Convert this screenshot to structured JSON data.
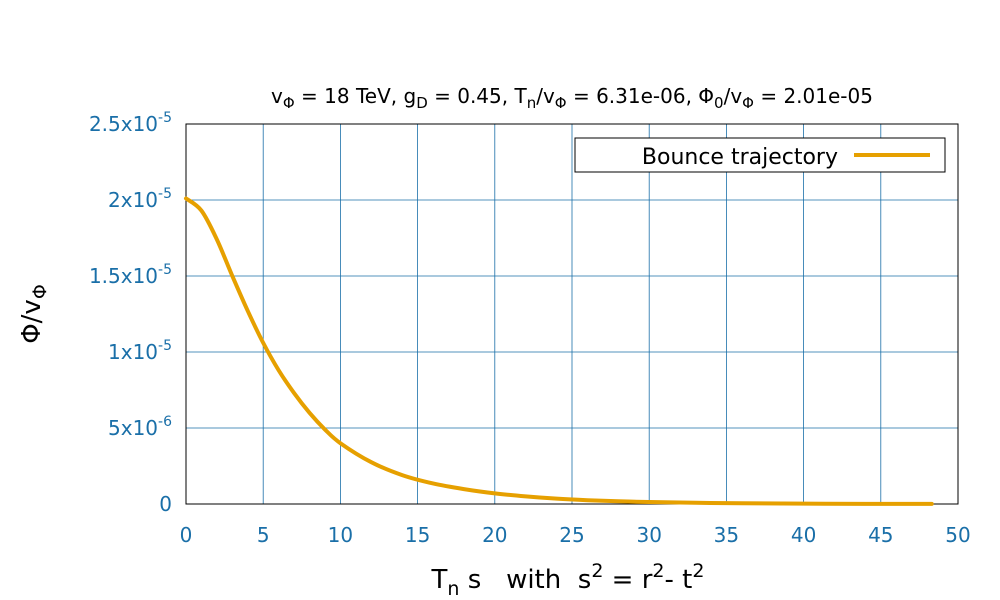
{
  "chart_data": {
    "type": "line",
    "title": "vΦ = 18 TeV, gD = 0.45, Tn/vΦ = 6.31e-06, Φ0/vΦ = 2.01e-05",
    "title_parts": {
      "part1_main": "v",
      "part1_sub": "Φ",
      "part1_rest": " = 18 TeV,  g",
      "part2_sub": "D",
      "part2_rest": " = 0.45,  T",
      "part3_sub": "n",
      "part3_rest": "/v",
      "part4_sub": "Φ",
      "part4_rest": " = 6.31e-06,  Φ",
      "part5_sub": "0",
      "part5_rest": "/v",
      "part6_sub": "Φ",
      "part6_rest": " = 2.01e-05"
    },
    "xlabel": "T_n s   with  s^2 = r^2- t^2",
    "xlabel_parts": {
      "a": "T",
      "a_sub": "n",
      "b": " s   with  s",
      "b_sup": "2",
      "c": " = r",
      "c_sup": "2",
      "d": "- t",
      "d_sup": "2"
    },
    "ylabel": "Φ/vΦ",
    "ylabel_parts": {
      "main": "Φ/v",
      "sub": "Φ"
    },
    "xlim": [
      0,
      50
    ],
    "ylim": [
      0,
      2.5e-05
    ],
    "x_ticks": [
      "0",
      "5",
      "10",
      "15",
      "20",
      "25",
      "30",
      "35",
      "40",
      "45",
      "50"
    ],
    "x_tick_values": [
      0,
      5,
      10,
      15,
      20,
      25,
      30,
      35,
      40,
      45,
      50
    ],
    "y_ticks": [
      {
        "value": 0,
        "base": "0",
        "exp": ""
      },
      {
        "value": 5e-06,
        "base": "5x10",
        "exp": "-6"
      },
      {
        "value": 1e-05,
        "base": "1x10",
        "exp": "-5"
      },
      {
        "value": 1.5e-05,
        "base": "1.5x10",
        "exp": "-5"
      },
      {
        "value": 2e-05,
        "base": "2x10",
        "exp": "-5"
      },
      {
        "value": 2.5e-05,
        "base": "2.5x10",
        "exp": "-5"
      }
    ],
    "grid": true,
    "legend_position": "top-right",
    "series": [
      {
        "name": "Bounce trajectory",
        "color": "#e6a000",
        "x": [
          0,
          1,
          2,
          3,
          4,
          5,
          6,
          7,
          8,
          9,
          10,
          12,
          14,
          16,
          18,
          20,
          22,
          24,
          26,
          28,
          30,
          33,
          36,
          40,
          44,
          48.3
        ],
        "y": [
          2.01e-05,
          1.93e-05,
          1.74e-05,
          1.5e-05,
          1.27e-05,
          1.06e-05,
          8.8e-06,
          7.3e-06,
          6e-06,
          4.9e-06,
          4e-06,
          2.75e-06,
          1.9e-06,
          1.35e-06,
          9.8e-07,
          7e-07,
          5e-07,
          3.5e-07,
          2.5e-07,
          1.8e-07,
          1.3e-07,
          8e-08,
          5e-08,
          2.5e-08,
          1.2e-08,
          5e-09
        ]
      }
    ]
  }
}
